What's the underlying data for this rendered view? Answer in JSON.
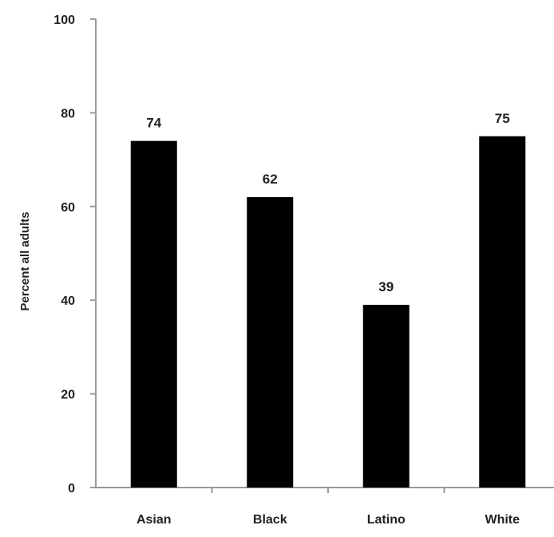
{
  "chart_data": {
    "type": "bar",
    "title": "",
    "xlabel": "",
    "ylabel": "Percent all adults",
    "categories": [
      "Asian",
      "Black",
      "Latino",
      "White"
    ],
    "values": [
      74,
      62,
      39,
      75
    ],
    "value_labels": [
      "74",
      "62",
      "39",
      "75"
    ],
    "ylim": [
      0,
      100
    ],
    "yticks": [
      0,
      20,
      40,
      60,
      80,
      100
    ],
    "ytick_labels": [
      "0",
      "20",
      "40",
      "60",
      "80",
      "100"
    ],
    "grid": false,
    "legend": "none",
    "bar_color": "#000000",
    "axis_color": "#9a9a9a"
  }
}
